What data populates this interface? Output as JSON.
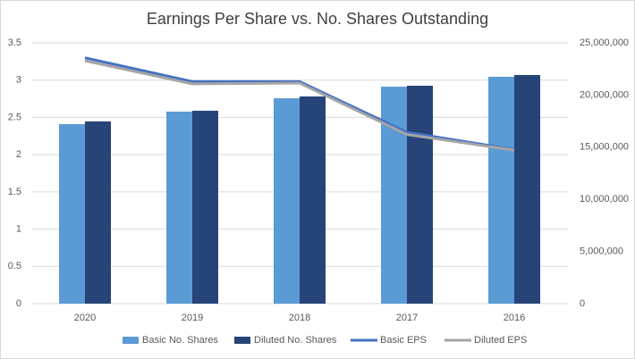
{
  "chart_data": {
    "type": "combo",
    "title": "Earnings Per Share vs. No. Shares Outstanding",
    "categories": [
      "2020",
      "2019",
      "2018",
      "2017",
      "2016"
    ],
    "series": [
      {
        "name": "Basic No. Shares",
        "type": "bar",
        "axis": "y2",
        "color": "#5b9bd5",
        "values": [
          17210000,
          18410000,
          19690000,
          20800000,
          21750000
        ]
      },
      {
        "name": "Diluted No. Shares",
        "type": "bar",
        "axis": "y2",
        "color": "#264478",
        "values": [
          17470000,
          18490000,
          19860000,
          20890000,
          21920000
        ]
      },
      {
        "name": "Basic EPS",
        "type": "line",
        "color": "#4472c4",
        "values": [
          3.3,
          2.98,
          2.98,
          2.3,
          2.07
        ]
      },
      {
        "name": "Diluted EPS",
        "type": "line",
        "color": "#a5a5a5",
        "values": [
          3.26,
          2.95,
          2.96,
          2.27,
          2.06
        ]
      }
    ],
    "ylim": [
      0,
      3.5
    ],
    "yticks": [
      0,
      0.5,
      1,
      1.5,
      2,
      2.5,
      3,
      3.5
    ],
    "y2lim": [
      0,
      25000000
    ],
    "y2ticks": [
      0,
      {
        "value": 5000000,
        "label": "5,000,000"
      },
      {
        "value": 10000000,
        "label": "10,000,000"
      },
      {
        "value": 15000000,
        "label": "15,000,000"
      },
      {
        "value": 20000000,
        "label": "20,000,000"
      },
      {
        "value": 25000000,
        "label": "25,000,000"
      }
    ],
    "grid": true,
    "legend": "bottom"
  }
}
